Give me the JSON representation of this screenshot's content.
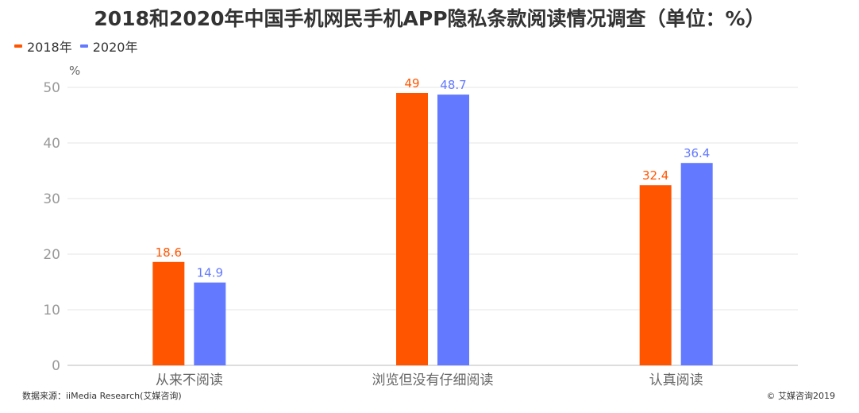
{
  "title": "2018和2020年中国手机网民手机APP隐私条款阅读情况调查（单位：%）",
  "footer": {
    "source": "数据来源：iiMedia Research(艾媒咨询)",
    "copyright": "© 艾媒咨询2019"
  },
  "colors": {
    "series_2018": "#FF5500",
    "series_2020": "#6379FF",
    "grid": "#E6E6E6",
    "axis": "#BBBBBB",
    "tick_text": "#999999"
  },
  "chart_data": {
    "type": "bar",
    "categories": [
      "从来不阅读",
      "浏览但没有仔细阅读",
      "认真阅读"
    ],
    "series": [
      {
        "name": "2018年",
        "values": [
          18.6,
          49,
          32.4
        ]
      },
      {
        "name": "2020年",
        "values": [
          14.9,
          48.7,
          36.4
        ]
      }
    ],
    "ylabel": "%",
    "ylim": [
      0,
      50
    ],
    "yticks": [
      0,
      10,
      20,
      30,
      40,
      50
    ],
    "grid": true,
    "legend": "top-left"
  }
}
